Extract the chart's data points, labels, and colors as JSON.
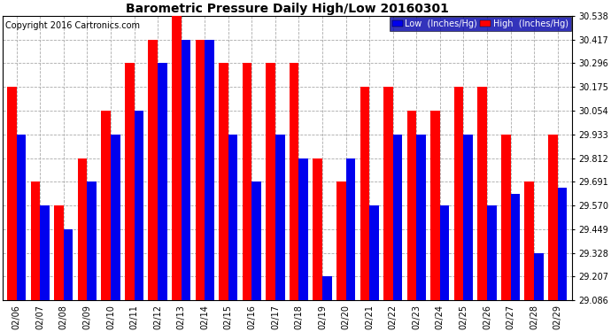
{
  "title": "Barometric Pressure Daily High/Low 20160301",
  "copyright": "Copyright 2016 Cartronics.com",
  "dates": [
    "02/06",
    "02/07",
    "02/08",
    "02/09",
    "02/10",
    "02/11",
    "02/12",
    "02/13",
    "02/14",
    "02/15",
    "02/16",
    "02/17",
    "02/18",
    "02/19",
    "02/20",
    "02/21",
    "02/22",
    "02/23",
    "02/24",
    "02/25",
    "02/26",
    "02/27",
    "02/28",
    "02/29"
  ],
  "high": [
    30.175,
    29.691,
    29.57,
    29.812,
    30.054,
    30.296,
    30.417,
    30.538,
    30.417,
    30.296,
    30.296,
    30.296,
    30.296,
    29.812,
    29.691,
    30.175,
    30.175,
    30.054,
    30.054,
    30.175,
    30.175,
    29.933,
    29.691,
    29.933
  ],
  "low": [
    29.933,
    29.57,
    29.449,
    29.691,
    29.933,
    30.054,
    30.296,
    30.417,
    30.417,
    29.933,
    29.691,
    29.933,
    29.812,
    29.207,
    29.812,
    29.57,
    29.933,
    29.933,
    29.57,
    29.933,
    29.57,
    29.628,
    29.328,
    29.663
  ],
  "ylim_min": 29.086,
  "ylim_max": 30.538,
  "yticks": [
    29.086,
    29.207,
    29.328,
    29.449,
    29.57,
    29.691,
    29.812,
    29.933,
    30.054,
    30.175,
    30.296,
    30.417,
    30.538
  ],
  "color_high": "#FF0000",
  "color_low": "#0000EE",
  "bg_color": "#FFFFFF",
  "plot_bg": "#FFFFFF",
  "bar_width": 0.4,
  "title_fontsize": 10,
  "tick_fontsize": 7,
  "copyright_fontsize": 7
}
